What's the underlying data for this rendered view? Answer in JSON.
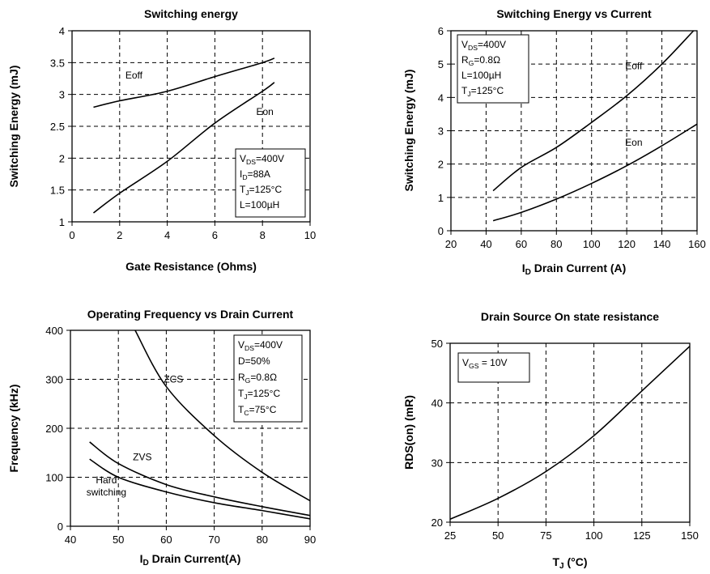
{
  "chart_data": [
    {
      "type": "line",
      "title": "Switching energy",
      "xlabel": "Gate Resistance (Ohms)",
      "ylabel": "Switching Energy (mJ)",
      "xlim": [
        0,
        10
      ],
      "ylim": [
        1,
        4
      ],
      "xticks": [
        0,
        2,
        4,
        6,
        8,
        10
      ],
      "yticks": [
        1,
        1.5,
        2,
        2.5,
        3,
        3.5,
        4
      ],
      "ytick_labels": [
        "1",
        "1.5",
        "2",
        "2.5",
        "3",
        "3.5",
        "4"
      ],
      "grid": true,
      "series": [
        {
          "name": "Eoff",
          "x": [
            0.9,
            2,
            4,
            6,
            8,
            8.5
          ],
          "y": [
            2.8,
            2.9,
            3.05,
            3.28,
            3.5,
            3.57
          ]
        },
        {
          "name": "Eon",
          "x": [
            0.9,
            2,
            4,
            6,
            8,
            8.5
          ],
          "y": [
            1.14,
            1.45,
            1.95,
            2.55,
            3.05,
            3.19
          ]
        }
      ],
      "annotations": [
        {
          "text": "Eoff",
          "x": 2.6,
          "y": 3.25
        },
        {
          "text": "Eon",
          "x": 8.1,
          "y": 2.68
        }
      ],
      "infobox": {
        "lines": [
          {
            "pre": "V",
            "sub": "DS",
            "post": "=400V"
          },
          {
            "pre": "I",
            "sub": "D",
            "post": "=88A"
          },
          {
            "pre": "T",
            "sub": "J",
            "post": "=125°C"
          },
          {
            "pre": "L=100µH",
            "sub": "",
            "post": ""
          }
        ]
      }
    },
    {
      "type": "line",
      "title": "Switching Energy vs Current",
      "xlabel": {
        "pre": "I",
        "sub": "D",
        "post": " Drain Current (A)"
      },
      "ylabel": "Switching Energy (mJ)",
      "xlim": [
        20,
        160
      ],
      "ylim": [
        0,
        6
      ],
      "xticks": [
        20,
        40,
        60,
        80,
        100,
        120,
        140,
        160
      ],
      "yticks": [
        0,
        1,
        2,
        3,
        4,
        5,
        6
      ],
      "ytick_labels": [
        "0",
        "1",
        "2",
        "3",
        "4",
        "5",
        "6"
      ],
      "grid": true,
      "series": [
        {
          "name": "Eoff",
          "x": [
            44,
            60,
            80,
            100,
            120,
            140,
            158
          ],
          "y": [
            1.2,
            1.9,
            2.5,
            3.25,
            4.05,
            5.0,
            6.0
          ]
        },
        {
          "name": "Eon",
          "x": [
            44,
            60,
            80,
            100,
            120,
            140,
            160
          ],
          "y": [
            0.3,
            0.55,
            0.95,
            1.42,
            1.95,
            2.55,
            3.2
          ]
        }
      ],
      "annotations": [
        {
          "text": "Eoff",
          "x": 124,
          "y": 4.85
        },
        {
          "text": "Eon",
          "x": 124,
          "y": 2.55
        }
      ],
      "infobox": {
        "lines": [
          {
            "pre": "V",
            "sub": "DS",
            "post": "=400V"
          },
          {
            "pre": "R",
            "sub": "G",
            "post": "=0.8Ω"
          },
          {
            "pre": "L=100µH",
            "sub": "",
            "post": ""
          },
          {
            "pre": "T",
            "sub": "J",
            "post": "=125°C"
          }
        ]
      }
    },
    {
      "type": "line",
      "title": "Operating Frequency vs Drain Current",
      "xlabel": {
        "pre": "I",
        "sub": "D",
        "post": " Drain Current(A)"
      },
      "ylabel": "Frequency (kHz)",
      "xlim": [
        40,
        90
      ],
      "ylim": [
        0,
        400
      ],
      "xticks": [
        40,
        50,
        60,
        70,
        80,
        90
      ],
      "yticks": [
        0,
        100,
        200,
        300,
        400
      ],
      "ytick_labels": [
        "0",
        "100",
        "200",
        "300",
        "400"
      ],
      "grid": true,
      "series": [
        {
          "name": "ZCS",
          "x": [
            53.5,
            60,
            70,
            80,
            90
          ],
          "y": [
            400,
            285,
            185,
            110,
            52
          ]
        },
        {
          "name": "ZVS",
          "x": [
            44,
            50,
            60,
            70,
            80,
            90
          ],
          "y": [
            172,
            128,
            85,
            60,
            40,
            22
          ]
        },
        {
          "name": "Hard switching",
          "x": [
            44,
            50,
            60,
            70,
            80,
            90
          ],
          "y": [
            137,
            100,
            70,
            48,
            32,
            15
          ]
        }
      ],
      "annotations": [
        {
          "text": "ZCS",
          "x": 61.5,
          "y": 293
        },
        {
          "text": "ZVS",
          "x": 55,
          "y": 135
        },
        {
          "text": "Hard",
          "x": 47.5,
          "y": 88
        },
        {
          "text": "switching",
          "x": 47.5,
          "y": 63
        }
      ],
      "infobox": {
        "lines": [
          {
            "pre": "V",
            "sub": "DS",
            "post": "=400V"
          },
          {
            "pre": "D=50%",
            "sub": "",
            "post": ""
          },
          {
            "pre": "R",
            "sub": "G",
            "post": "=0.8Ω"
          },
          {
            "pre": "T",
            "sub": "J",
            "post": "=125°C"
          },
          {
            "pre": "T",
            "sub": "C",
            "post": "=75°C"
          }
        ]
      }
    },
    {
      "type": "line",
      "title": "Drain Source On state resistance",
      "xlabel": {
        "pre": "T",
        "sub": "J",
        "post": " (°C)"
      },
      "ylabel": "RDS(on) (mR)",
      "xlim": [
        25,
        150
      ],
      "ylim": [
        20,
        50
      ],
      "xticks": [
        25,
        50,
        75,
        100,
        125,
        150
      ],
      "yticks": [
        20,
        30,
        40,
        50
      ],
      "ytick_labels": [
        "20",
        "30",
        "40",
        "50"
      ],
      "grid": true,
      "series": [
        {
          "name": "",
          "x": [
            25,
            50,
            75,
            100,
            125,
            150
          ],
          "y": [
            20.5,
            24,
            28.5,
            34.5,
            42,
            49.5
          ]
        }
      ],
      "annotations": [],
      "infobox": {
        "lines": [
          {
            "pre": "V",
            "sub": "GS",
            "post": " = 10V"
          }
        ]
      }
    }
  ]
}
